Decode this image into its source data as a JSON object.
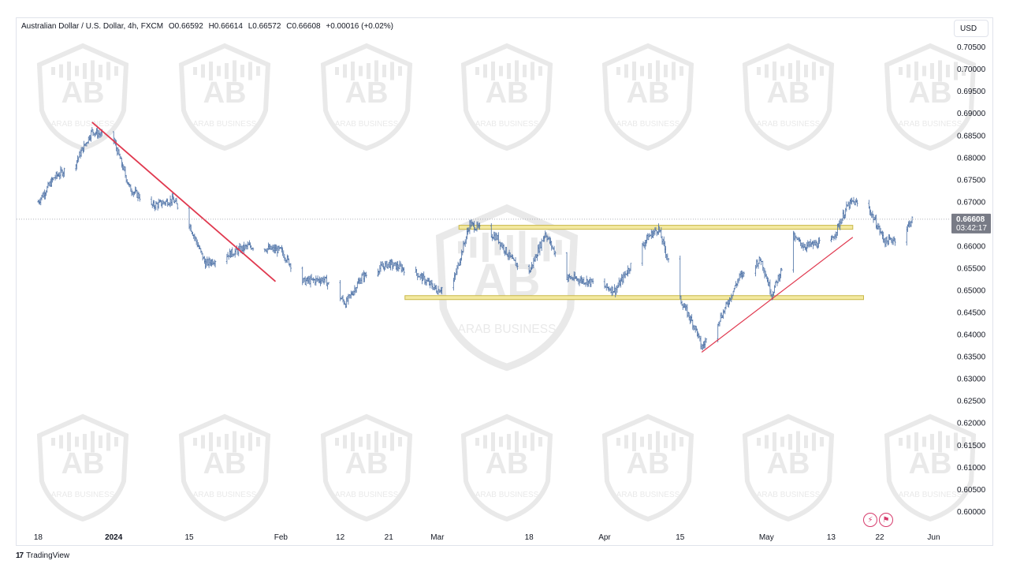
{
  "header": {
    "symbol": "Australian Dollar / U.S. Dollar, 4h, FXCM",
    "open": "O0.66592",
    "high": "H0.66614",
    "low": "L0.66572",
    "close": "C0.66608",
    "change": "+0.00016 (+0.02%)"
  },
  "currency_button": "USD",
  "price_badge": {
    "price": "0.66608",
    "countdown": "03:42:17",
    "color": "#787b86"
  },
  "brand": "TradingView",
  "watermark": "ARAB BUSINESS",
  "colors": {
    "candles": "#4a6fa5",
    "downtrend_line": "#e0394f",
    "uptrend_line": "#e0394f",
    "zone_fill": "#f3e9a0",
    "zone_border": "#c9b84a"
  },
  "chart_data": {
    "type": "candlestick",
    "title": "",
    "ylim": [
      0.5965,
      0.7085
    ],
    "y_ticks": [
      0.705,
      0.7,
      0.695,
      0.69,
      0.685,
      0.68,
      0.675,
      0.67,
      0.665,
      0.66,
      0.655,
      0.65,
      0.645,
      0.64,
      0.635,
      0.63,
      0.625,
      0.62,
      0.615,
      0.61,
      0.605,
      0.6
    ],
    "y_tick_labels": [
      "0.70500",
      "0.70000",
      "0.69500",
      "0.69000",
      "0.68500",
      "0.68000",
      "0.67500",
      "0.67000",
      "0.66500",
      "0.66000",
      "0.65500",
      "0.65000",
      "0.64500",
      "0.64000",
      "0.63500",
      "0.63000",
      "0.62500",
      "0.62000",
      "0.61500",
      "0.61000",
      "0.60500",
      "0.60000"
    ],
    "x_ticks": [
      {
        "label": "18",
        "date": "2023-12-18"
      },
      {
        "label": "2024",
        "date": "2024-01-01"
      },
      {
        "label": "15",
        "date": "2024-01-15"
      },
      {
        "label": "Feb",
        "date": "2024-02-01"
      },
      {
        "label": "12",
        "date": "2024-02-12"
      },
      {
        "label": "21",
        "date": "2024-02-21"
      },
      {
        "label": "Mar",
        "date": "2024-03-01"
      },
      {
        "label": "18",
        "date": "2024-03-18"
      },
      {
        "label": "Apr",
        "date": "2024-04-01"
      },
      {
        "label": "15",
        "date": "2024-04-15"
      },
      {
        "label": "May",
        "date": "2024-05-01"
      },
      {
        "label": "13",
        "date": "2024-05-13"
      },
      {
        "label": "22",
        "date": "2024-05-22"
      },
      {
        "label": "Jun",
        "date": "2024-06-01"
      }
    ],
    "current_price": 0.66608,
    "price_path": [
      [
        "2023-12-18",
        0.67
      ],
      [
        "2023-12-21",
        0.6755
      ],
      [
        "2023-12-25",
        0.679
      ],
      [
        "2023-12-28",
        0.686
      ],
      [
        "2024-01-01",
        0.684
      ],
      [
        "2024-01-04",
        0.673
      ],
      [
        "2024-01-08",
        0.669
      ],
      [
        "2024-01-12",
        0.6705
      ],
      [
        "2024-01-15",
        0.665
      ],
      [
        "2024-01-18",
        0.656
      ],
      [
        "2024-01-22",
        0.658
      ],
      [
        "2024-01-26",
        0.66
      ],
      [
        "2024-02-01",
        0.659
      ],
      [
        "2024-02-05",
        0.652
      ],
      [
        "2024-02-09",
        0.6525
      ],
      [
        "2024-02-13",
        0.647
      ],
      [
        "2024-02-16",
        0.653
      ],
      [
        "2024-02-21",
        0.656
      ],
      [
        "2024-02-26",
        0.654
      ],
      [
        "2024-03-01",
        0.65
      ],
      [
        "2024-03-04",
        0.652
      ],
      [
        "2024-03-07",
        0.665
      ],
      [
        "2024-03-12",
        0.662
      ],
      [
        "2024-03-15",
        0.6565
      ],
      [
        "2024-03-18",
        0.654
      ],
      [
        "2024-03-21",
        0.663
      ],
      [
        "2024-03-25",
        0.653
      ],
      [
        "2024-03-29",
        0.652
      ],
      [
        "2024-04-03",
        0.65
      ],
      [
        "2024-04-09",
        0.662
      ],
      [
        "2024-04-11",
        0.664
      ],
      [
        "2024-04-15",
        0.648
      ],
      [
        "2024-04-18",
        0.641
      ],
      [
        "2024-04-19",
        0.637
      ],
      [
        "2024-04-23",
        0.645
      ],
      [
        "2024-04-26",
        0.653
      ],
      [
        "2024-04-30",
        0.657
      ],
      [
        "2024-05-02",
        0.649
      ],
      [
        "2024-05-06",
        0.662
      ],
      [
        "2024-05-08",
        0.66
      ],
      [
        "2024-05-13",
        0.661
      ],
      [
        "2024-05-16",
        0.669
      ],
      [
        "2024-05-17",
        0.67
      ],
      [
        "2024-05-20",
        0.6685
      ],
      [
        "2024-05-23",
        0.661
      ],
      [
        "2024-05-26",
        0.662
      ],
      [
        "2024-05-28",
        0.6661
      ]
    ],
    "annotations": [
      {
        "type": "trendline",
        "from": [
          "2023-12-28",
          0.688
        ],
        "to": [
          "2024-01-31",
          0.652
        ]
      },
      {
        "type": "trendline",
        "from": [
          "2024-04-19",
          0.636
        ],
        "to": [
          "2024-05-17",
          0.662
        ]
      },
      {
        "type": "zone",
        "start": "2024-03-05",
        "end": "2024-05-17",
        "y0": 0.6638,
        "y1": 0.6647
      },
      {
        "type": "zone",
        "start": "2024-02-24",
        "end": "2024-05-19",
        "y0": 0.648,
        "y1": 0.6488
      }
    ]
  }
}
